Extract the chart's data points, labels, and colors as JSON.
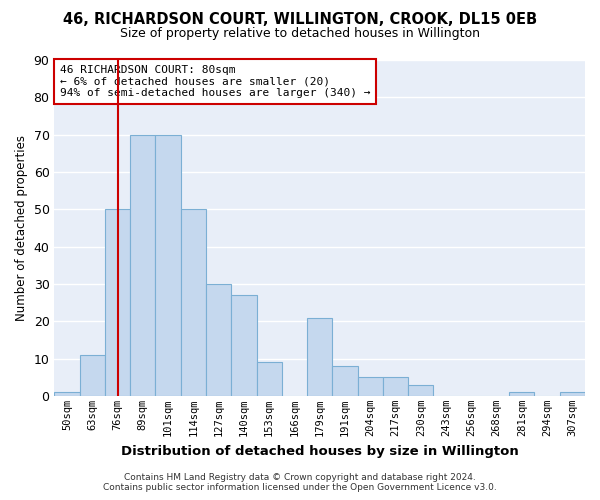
{
  "title": "46, RICHARDSON COURT, WILLINGTON, CROOK, DL15 0EB",
  "subtitle": "Size of property relative to detached houses in Willington",
  "xlabel": "Distribution of detached houses by size in Willington",
  "ylabel": "Number of detached properties",
  "bar_labels": [
    "50sqm",
    "63sqm",
    "76sqm",
    "89sqm",
    "101sqm",
    "114sqm",
    "127sqm",
    "140sqm",
    "153sqm",
    "166sqm",
    "179sqm",
    "191sqm",
    "204sqm",
    "217sqm",
    "230sqm",
    "243sqm",
    "256sqm",
    "268sqm",
    "281sqm",
    "294sqm",
    "307sqm"
  ],
  "bar_values": [
    1,
    11,
    50,
    70,
    70,
    50,
    30,
    27,
    9,
    0,
    21,
    8,
    5,
    5,
    3,
    0,
    0,
    0,
    1,
    0,
    1
  ],
  "bar_color": "#c5d8ee",
  "bar_edge_color": "#7bafd4",
  "vline_x": 2,
  "vline_color": "#cc0000",
  "ylim": [
    0,
    90
  ],
  "yticks": [
    0,
    10,
    20,
    30,
    40,
    50,
    60,
    70,
    80,
    90
  ],
  "annotation_title": "46 RICHARDSON COURT: 80sqm",
  "annotation_line1": "← 6% of detached houses are smaller (20)",
  "annotation_line2": "94% of semi-detached houses are larger (340) →",
  "annotation_box_color": "#cc0000",
  "footer_line1": "Contains HM Land Registry data © Crown copyright and database right 2024.",
  "footer_line2": "Contains public sector information licensed under the Open Government Licence v3.0.",
  "bg_color": "#ffffff",
  "plot_bg_color": "#e8eef8",
  "grid_color": "#ffffff",
  "title_fontsize": 10.5,
  "subtitle_fontsize": 9.0
}
